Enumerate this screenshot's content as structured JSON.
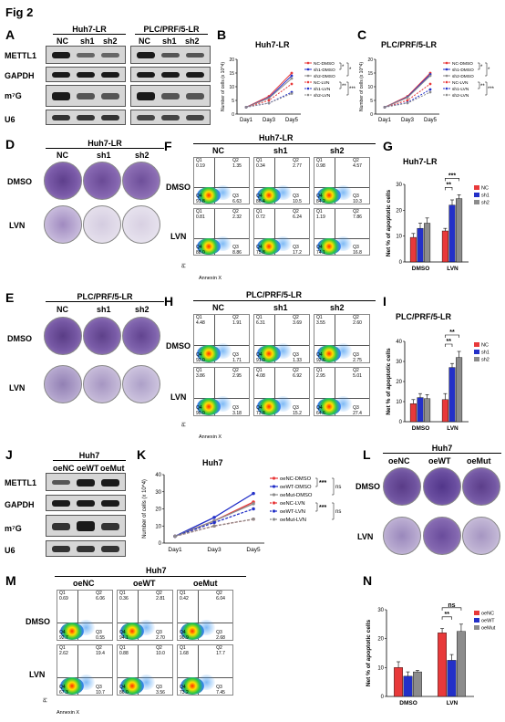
{
  "figure_title": "Fig 2",
  "panels": {
    "A": {
      "label": "A",
      "group1": "Huh7-LR",
      "group2": "PLC/PRF/5-LR",
      "lanes": [
        "NC",
        "sh1",
        "sh2"
      ],
      "rows": [
        "METTL1",
        "GAPDH",
        "m⁷G",
        "U6"
      ]
    },
    "B": {
      "label": "B",
      "title": "Huh7-LR",
      "ylabel": "Number of cells (x 10^4)",
      "legend": [
        "NC-DMSO",
        "sh1-DMSO",
        "sh2-DMSO",
        "NC-LVN",
        "sh1-LVN",
        "sh2-LVN"
      ],
      "sig": [
        "*",
        "*",
        "**",
        "***"
      ]
    },
    "C": {
      "label": "C",
      "title": "PLC/PRF/5-LR",
      "ylabel": "Number of cells (x 10^4)",
      "legend": [
        "NC-DMSO",
        "sh1-DMSO",
        "sh2-DMSO",
        "NC-LVN",
        "sh1-LVN",
        "sh2-LVN"
      ],
      "sig": [
        "*",
        "*",
        "**",
        "***"
      ]
    },
    "D": {
      "label": "D",
      "title": "Huh7-LR",
      "cols": [
        "NC",
        "sh1",
        "sh2"
      ],
      "rows": [
        "DMSO",
        "LVN"
      ]
    },
    "E": {
      "label": "E",
      "title": "PLC/PRF/5-LR",
      "cols": [
        "NC",
        "sh1",
        "sh2"
      ],
      "rows": [
        "DMSO",
        "LVN"
      ]
    },
    "F": {
      "label": "F",
      "title": "Huh7-LR",
      "cols": [
        "NC",
        "sh1",
        "sh2"
      ],
      "rows": [
        "DMSO",
        "LVN"
      ],
      "xlabel": "Annexin X",
      "ylabel": "PI",
      "quads": [
        [
          "Q1",
          "0.19",
          "Q2",
          "1.35",
          "Q4",
          "91.8",
          "Q3",
          "6.63"
        ],
        [
          "Q1",
          "0.34",
          "Q2",
          "2.77",
          "Q4",
          "86.4",
          "Q3",
          "10.5"
        ],
        [
          "Q1",
          "0.98",
          "Q2",
          "4.57",
          "Q4",
          "84.2",
          "Q3",
          "10.3"
        ],
        [
          "Q1",
          "0.81",
          "Q2",
          "2.32",
          "Q4",
          "88.0",
          "Q3",
          "8.86"
        ],
        [
          "Q1",
          "0.72",
          "Q2",
          "6.24",
          "Q4",
          "75.8",
          "Q3",
          "17.2"
        ],
        [
          "Q1",
          "1.19",
          "Q2",
          "7.86",
          "Q4",
          "74.1",
          "Q3",
          "16.8"
        ]
      ]
    },
    "G": {
      "label": "G",
      "title": "Huh7-LR",
      "ylabel": "Net % of apoptotic cells",
      "legend": [
        "NC",
        "sh1",
        "sh2"
      ],
      "sig": [
        "***",
        "**"
      ]
    },
    "H": {
      "label": "H",
      "title": "PLC/PRF/5-LR",
      "cols": [
        "NC",
        "sh1",
        "sh2"
      ],
      "rows": [
        "DMSO",
        "LVN"
      ],
      "xlabel": "Annexin X",
      "ylabel": "PI",
      "quads": [
        [
          "Q1",
          "4.48",
          "Q2",
          "1.91",
          "Q4",
          "92.0",
          "Q3",
          "1.71"
        ],
        [
          "Q1",
          "6.31",
          "Q2",
          "3.69",
          "Q4",
          "91.0",
          "Q3",
          "1.33"
        ],
        [
          "Q1",
          "3.55",
          "Q2",
          "2.60",
          "Q4",
          "92.6",
          "Q3",
          "2.75"
        ],
        [
          "Q1",
          "3.86",
          "Q2",
          "2.95",
          "Q4",
          "90.0",
          "Q3",
          "3.18"
        ],
        [
          "Q1",
          "4.08",
          "Q2",
          "6.92",
          "Q4",
          "73.8",
          "Q3",
          "15.2"
        ],
        [
          "Q1",
          "2.95",
          "Q2",
          "5.01",
          "Q4",
          "64.6",
          "Q3",
          "27.4"
        ]
      ]
    },
    "I": {
      "label": "I",
      "title": "PLC/PRF/5-LR",
      "ylabel": "Net % of apoptotic cells",
      "legend": [
        "NC",
        "sh1",
        "sh2"
      ],
      "sig": [
        "**",
        "**"
      ]
    },
    "J": {
      "label": "J",
      "group": "Huh7",
      "lanes": [
        "oeNC",
        "oeWT",
        "oeMut"
      ],
      "rows": [
        "METTL1",
        "GAPDH",
        "m⁷G",
        "U6"
      ]
    },
    "K": {
      "label": "K",
      "title": "Huh7",
      "ylabel": "Number of cells (x 10^4)",
      "legend": [
        "oeNC-DMSO",
        "oeWT-DMSO",
        "oeMut-DMSO",
        "oeNC-LVN",
        "oeWT-LVN",
        "oeMut-LVN"
      ],
      "sig": [
        "***",
        "ns",
        "***",
        "ns"
      ]
    },
    "L": {
      "label": "L",
      "title": "Huh7",
      "cols": [
        "oeNC",
        "oeWT",
        "oeMut"
      ],
      "rows": [
        "DMSO",
        "LVN"
      ]
    },
    "M": {
      "label": "M",
      "title": "Huh7",
      "cols": [
        "oeNC",
        "oeWT",
        "oeMut"
      ],
      "rows": [
        "DMSO",
        "LVN"
      ],
      "xlabel": "Annexin X",
      "ylabel": "PI",
      "quads": [
        [
          "Q1",
          "0.69",
          "Q2",
          "6.06",
          "Q4",
          "92.7",
          "Q3",
          "0.55"
        ],
        [
          "Q1",
          "0.36",
          "Q2",
          "2.81",
          "Q4",
          "94.1",
          "Q3",
          "2.70"
        ],
        [
          "Q1",
          "0.42",
          "Q2",
          "6.04",
          "Q4",
          "90.9",
          "Q3",
          "2.68"
        ],
        [
          "Q1",
          "2.62",
          "Q2",
          "19.4",
          "Q4",
          "67.3",
          "Q3",
          "10.7"
        ],
        [
          "Q1",
          "0.88",
          "Q2",
          "10.0",
          "Q4",
          "86.0",
          "Q3",
          "3.56"
        ],
        [
          "Q1",
          "1.68",
          "Q2",
          "17.7",
          "Q4",
          "73.2",
          "Q3",
          "7.45"
        ]
      ]
    },
    "N": {
      "label": "N",
      "ylabel": "Net % of apoptotic cells",
      "legend": [
        "oeNC",
        "oeWT",
        "oeMut"
      ],
      "sig": [
        "ns",
        "**"
      ]
    }
  },
  "colors": {
    "red": "#e8393a",
    "blue": "#2330c8",
    "gray": "#8c8c8c",
    "dish": "#7b5aa8"
  },
  "chart_data": [
    {
      "type": "line",
      "title": "Huh7-LR",
      "categories": [
        "Day1",
        "Day3",
        "Day5"
      ],
      "ylabel": "Number of cells (x 10^4)",
      "ylim": [
        0,
        20
      ],
      "yticks": [
        0,
        5,
        10,
        15,
        20
      ],
      "series": [
        {
          "name": "NC-DMSO",
          "color": "#e8393a",
          "values": [
            2.5,
            6.5,
            15
          ]
        },
        {
          "name": "sh1-DMSO",
          "color": "#2330c8",
          "values": [
            2.5,
            6.0,
            14
          ]
        },
        {
          "name": "sh2-DMSO",
          "color": "#8c8c8c",
          "values": [
            2.5,
            5.8,
            13
          ]
        },
        {
          "name": "NC-LVN",
          "color": "#e8393a",
          "values": [
            2.5,
            5.0,
            11
          ]
        },
        {
          "name": "sh1-LVN",
          "color": "#2330c8",
          "values": [
            2.5,
            4.0,
            8
          ]
        },
        {
          "name": "sh2-LVN",
          "color": "#8c8c8c",
          "values": [
            2.5,
            4.0,
            7.5
          ]
        }
      ]
    },
    {
      "type": "line",
      "title": "PLC/PRF/5-LR",
      "categories": [
        "Day1",
        "Day3",
        "Day5"
      ],
      "ylabel": "Number of cells (x 10^4)",
      "ylim": [
        0,
        20
      ],
      "yticks": [
        0,
        5,
        10,
        15,
        20
      ],
      "series": [
        {
          "name": "NC-DMSO",
          "color": "#e8393a",
          "values": [
            2.5,
            6.5,
            15
          ]
        },
        {
          "name": "sh1-DMSO",
          "color": "#2330c8",
          "values": [
            2.5,
            6.2,
            14.5
          ]
        },
        {
          "name": "sh2-DMSO",
          "color": "#8c8c8c",
          "values": [
            2.5,
            6.0,
            14
          ]
        },
        {
          "name": "NC-LVN",
          "color": "#e8393a",
          "values": [
            2.5,
            5.0,
            11
          ]
        },
        {
          "name": "sh1-LVN",
          "color": "#2330c8",
          "values": [
            2.5,
            4.2,
            9
          ]
        },
        {
          "name": "sh2-LVN",
          "color": "#8c8c8c",
          "values": [
            2.5,
            4.0,
            8
          ]
        }
      ]
    },
    {
      "type": "bar",
      "title": "Huh7-LR",
      "categories": [
        "DMSO",
        "LVN"
      ],
      "ylabel": "Net % of apoptotic cells",
      "ylim": [
        0,
        30
      ],
      "yticks": [
        0,
        10,
        20,
        30
      ],
      "series": [
        {
          "name": "NC",
          "color": "#e8393a",
          "values": [
            9.5,
            12
          ],
          "errors": [
            1.5,
            1
          ]
        },
        {
          "name": "sh1",
          "color": "#2330c8",
          "values": [
            13,
            22
          ],
          "errors": [
            2,
            2
          ]
        },
        {
          "name": "sh2",
          "color": "#8c8c8c",
          "values": [
            15,
            24.5
          ],
          "errors": [
            2,
            1.5
          ]
        }
      ]
    },
    {
      "type": "bar",
      "title": "PLC/PRF/5-LR",
      "categories": [
        "DMSO",
        "LVN"
      ],
      "ylabel": "Net % of apoptotic cells",
      "ylim": [
        0,
        40
      ],
      "yticks": [
        0,
        10,
        20,
        30,
        40
      ],
      "series": [
        {
          "name": "NC",
          "color": "#e8393a",
          "values": [
            9,
            11
          ],
          "errors": [
            2,
            3
          ]
        },
        {
          "name": "sh1",
          "color": "#2330c8",
          "values": [
            12,
            27
          ],
          "errors": [
            2,
            2
          ]
        },
        {
          "name": "sh2",
          "color": "#8c8c8c",
          "values": [
            11.5,
            32
          ],
          "errors": [
            2,
            3
          ]
        }
      ]
    },
    {
      "type": "line",
      "title": "Huh7",
      "categories": [
        "Day1",
        "Day3",
        "Day5"
      ],
      "ylabel": "Number of cells (x 10^4)",
      "ylim": [
        0,
        40
      ],
      "yticks": [
        0,
        10,
        20,
        30,
        40
      ],
      "series": [
        {
          "name": "oeNC-DMSO",
          "color": "#e8393a",
          "values": [
            4,
            13,
            24
          ]
        },
        {
          "name": "oeWT-DMSO",
          "color": "#2330c8",
          "values": [
            4,
            15,
            29
          ]
        },
        {
          "name": "oeMut-DMSO",
          "color": "#8c8c8c",
          "values": [
            4,
            13,
            23
          ]
        },
        {
          "name": "oeNC-LVN",
          "color": "#e8393a",
          "values": [
            4,
            10,
            14
          ]
        },
        {
          "name": "oeWT-LVN",
          "color": "#2330c8",
          "values": [
            4,
            12,
            20
          ]
        },
        {
          "name": "oeMut-LVN",
          "color": "#8c8c8c",
          "values": [
            4,
            10,
            14
          ]
        }
      ]
    },
    {
      "type": "bar",
      "categories": [
        "DMSO",
        "LVN"
      ],
      "ylabel": "Net % of apoptotic cells",
      "ylim": [
        0,
        30
      ],
      "yticks": [
        0,
        10,
        20,
        30
      ],
      "series": [
        {
          "name": "oeNC",
          "color": "#e8393a",
          "values": [
            10,
            22
          ],
          "errors": [
            2,
            1.5
          ]
        },
        {
          "name": "oeWT",
          "color": "#2330c8",
          "values": [
            7,
            12.5
          ],
          "errors": [
            1.5,
            2
          ]
        },
        {
          "name": "oeMut",
          "color": "#8c8c8c",
          "values": [
            8.5,
            22.5
          ],
          "errors": [
            0.5,
            2.5
          ]
        }
      ]
    }
  ]
}
